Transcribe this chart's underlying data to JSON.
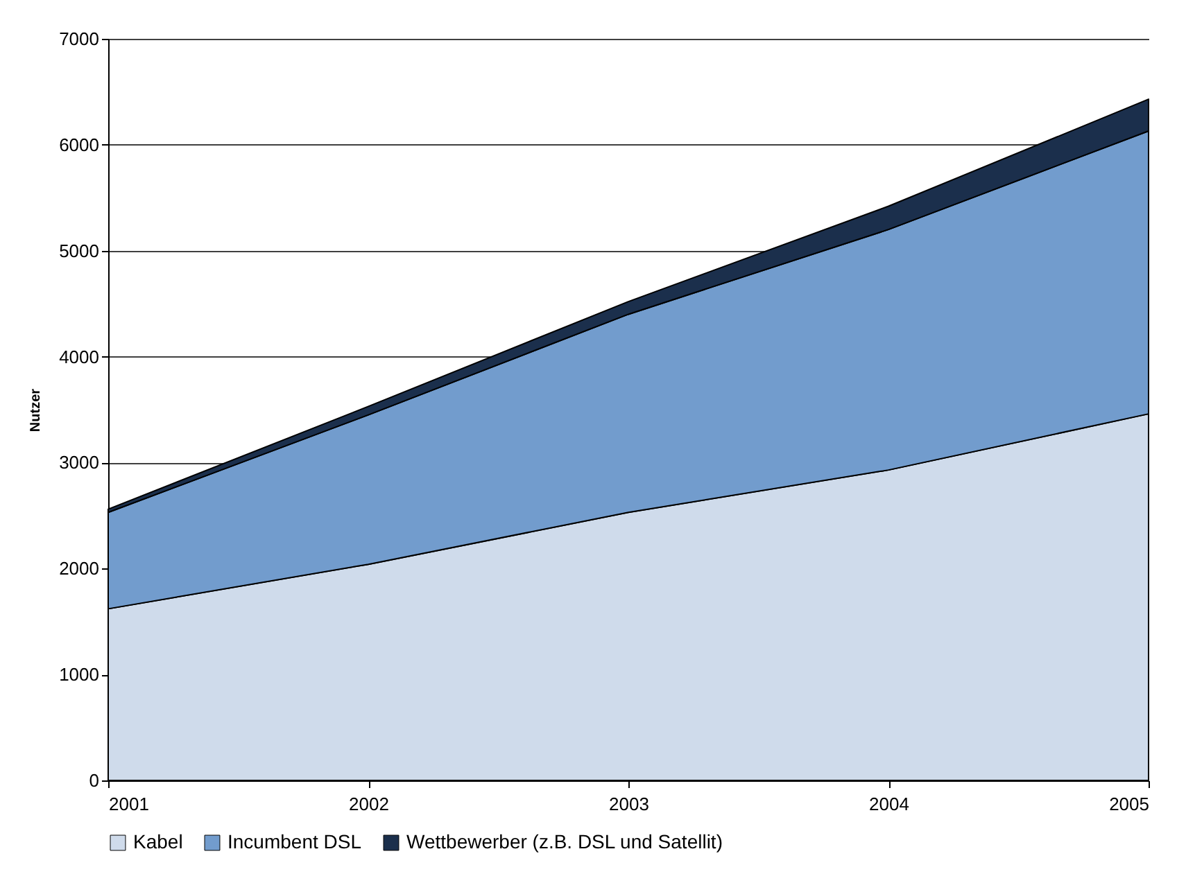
{
  "chart_data": {
    "type": "area",
    "stacked": true,
    "ylabel": "Nutzer",
    "x": [
      2001,
      2002,
      2003,
      2004,
      2005
    ],
    "xlim": [
      2001,
      2005
    ],
    "xticks": [
      2001,
      2002,
      2003,
      2004,
      2005
    ],
    "ylim": [
      0,
      7000
    ],
    "yticks": [
      0,
      1000,
      2000,
      3000,
      4000,
      5000,
      6000,
      7000
    ],
    "grid": "y",
    "legend": "bottom",
    "series": [
      {
        "name": "Kabel",
        "color": "#cfdbeb",
        "values": [
          1620,
          2040,
          2530,
          2930,
          3460
        ]
      },
      {
        "name": "Incumbent DSL",
        "color": "#729ccd",
        "values": [
          910,
          1410,
          1870,
          2270,
          2670
        ]
      },
      {
        "name": "Wettbewerber (z.B. DSL und Satellit)",
        "color": "#1b2f4c",
        "values": [
          30,
          80,
          120,
          220,
          300
        ]
      }
    ]
  }
}
